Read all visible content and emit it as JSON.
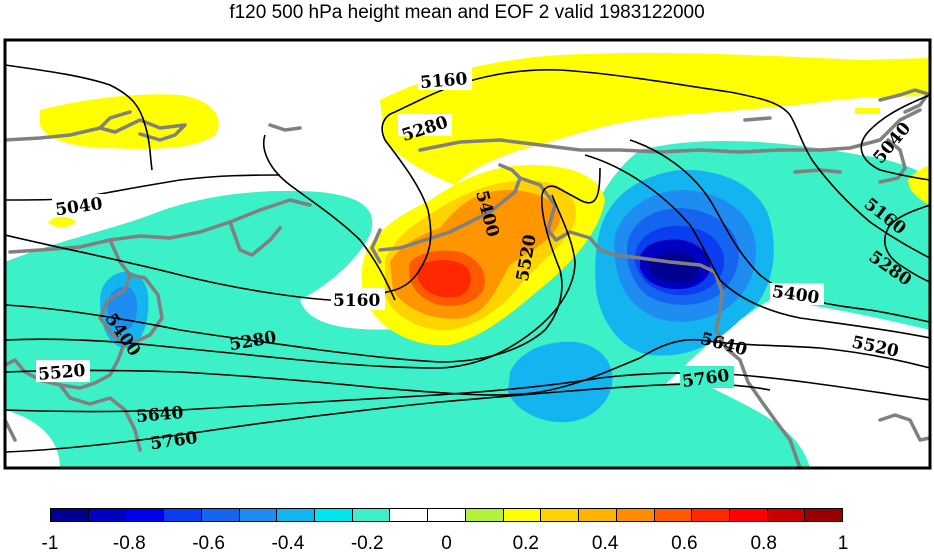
{
  "title": "f120 500 hPa height mean and EOF 2 valid 1983122000",
  "contour_labels": [
    "5160",
    "5280",
    "5040",
    "5400",
    "5520",
    "5160",
    "5280",
    "5400",
    "5520",
    "5640",
    "5760",
    "5040",
    "5160",
    "5280",
    "5400",
    "5520",
    "5640",
    "5760"
  ],
  "colorbar": {
    "colors": [
      "#000090",
      "#0000c0",
      "#0000f0",
      "#0a3cf0",
      "#1464f0",
      "#1e8cf0",
      "#14b4f0",
      "#00e6f0",
      "#3cf0c8",
      "#ffffff",
      "#ffffff",
      "#b4f03c",
      "#ffff00",
      "#ffd200",
      "#ffb400",
      "#ff8c00",
      "#ff5a00",
      "#ff2800",
      "#ff0000",
      "#c80000",
      "#960000"
    ],
    "tick_labels": [
      "-1",
      "-0.8",
      "-0.6",
      "-0.4",
      "-0.2",
      "0",
      "0.2",
      "0.4",
      "0.6",
      "0.8",
      "1"
    ]
  },
  "colors": {
    "coastline": "#808080",
    "contour": "#000000",
    "frame": "#000000"
  }
}
